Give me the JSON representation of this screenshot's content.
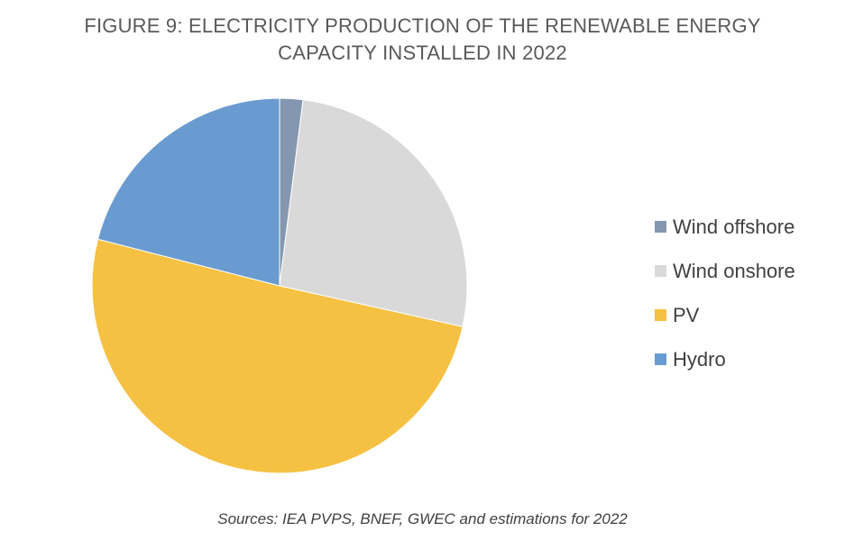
{
  "chart_data": {
    "type": "pie",
    "title_lines": [
      "FIGURE 9: ELECTRICITY PRODUCTION OF THE  RENEWABLE ENERGY",
      "CAPACITY  INSTALLED IN 2022"
    ],
    "categories": [
      "Wind offshore",
      "Wind onshore",
      "PV",
      "Hydro"
    ],
    "values": [
      2,
      26.5,
      50.5,
      21
    ],
    "unit": "% share (estimated)",
    "colors": [
      "#8497b0",
      "#d9d9d9",
      "#f5c142",
      "#6a9bd0"
    ],
    "start_angle_deg": 0,
    "direction": "clockwise",
    "legend_position": "right"
  },
  "source": "Sources: IEA PVPS, BNEF, GWEC and estimations for 2022"
}
